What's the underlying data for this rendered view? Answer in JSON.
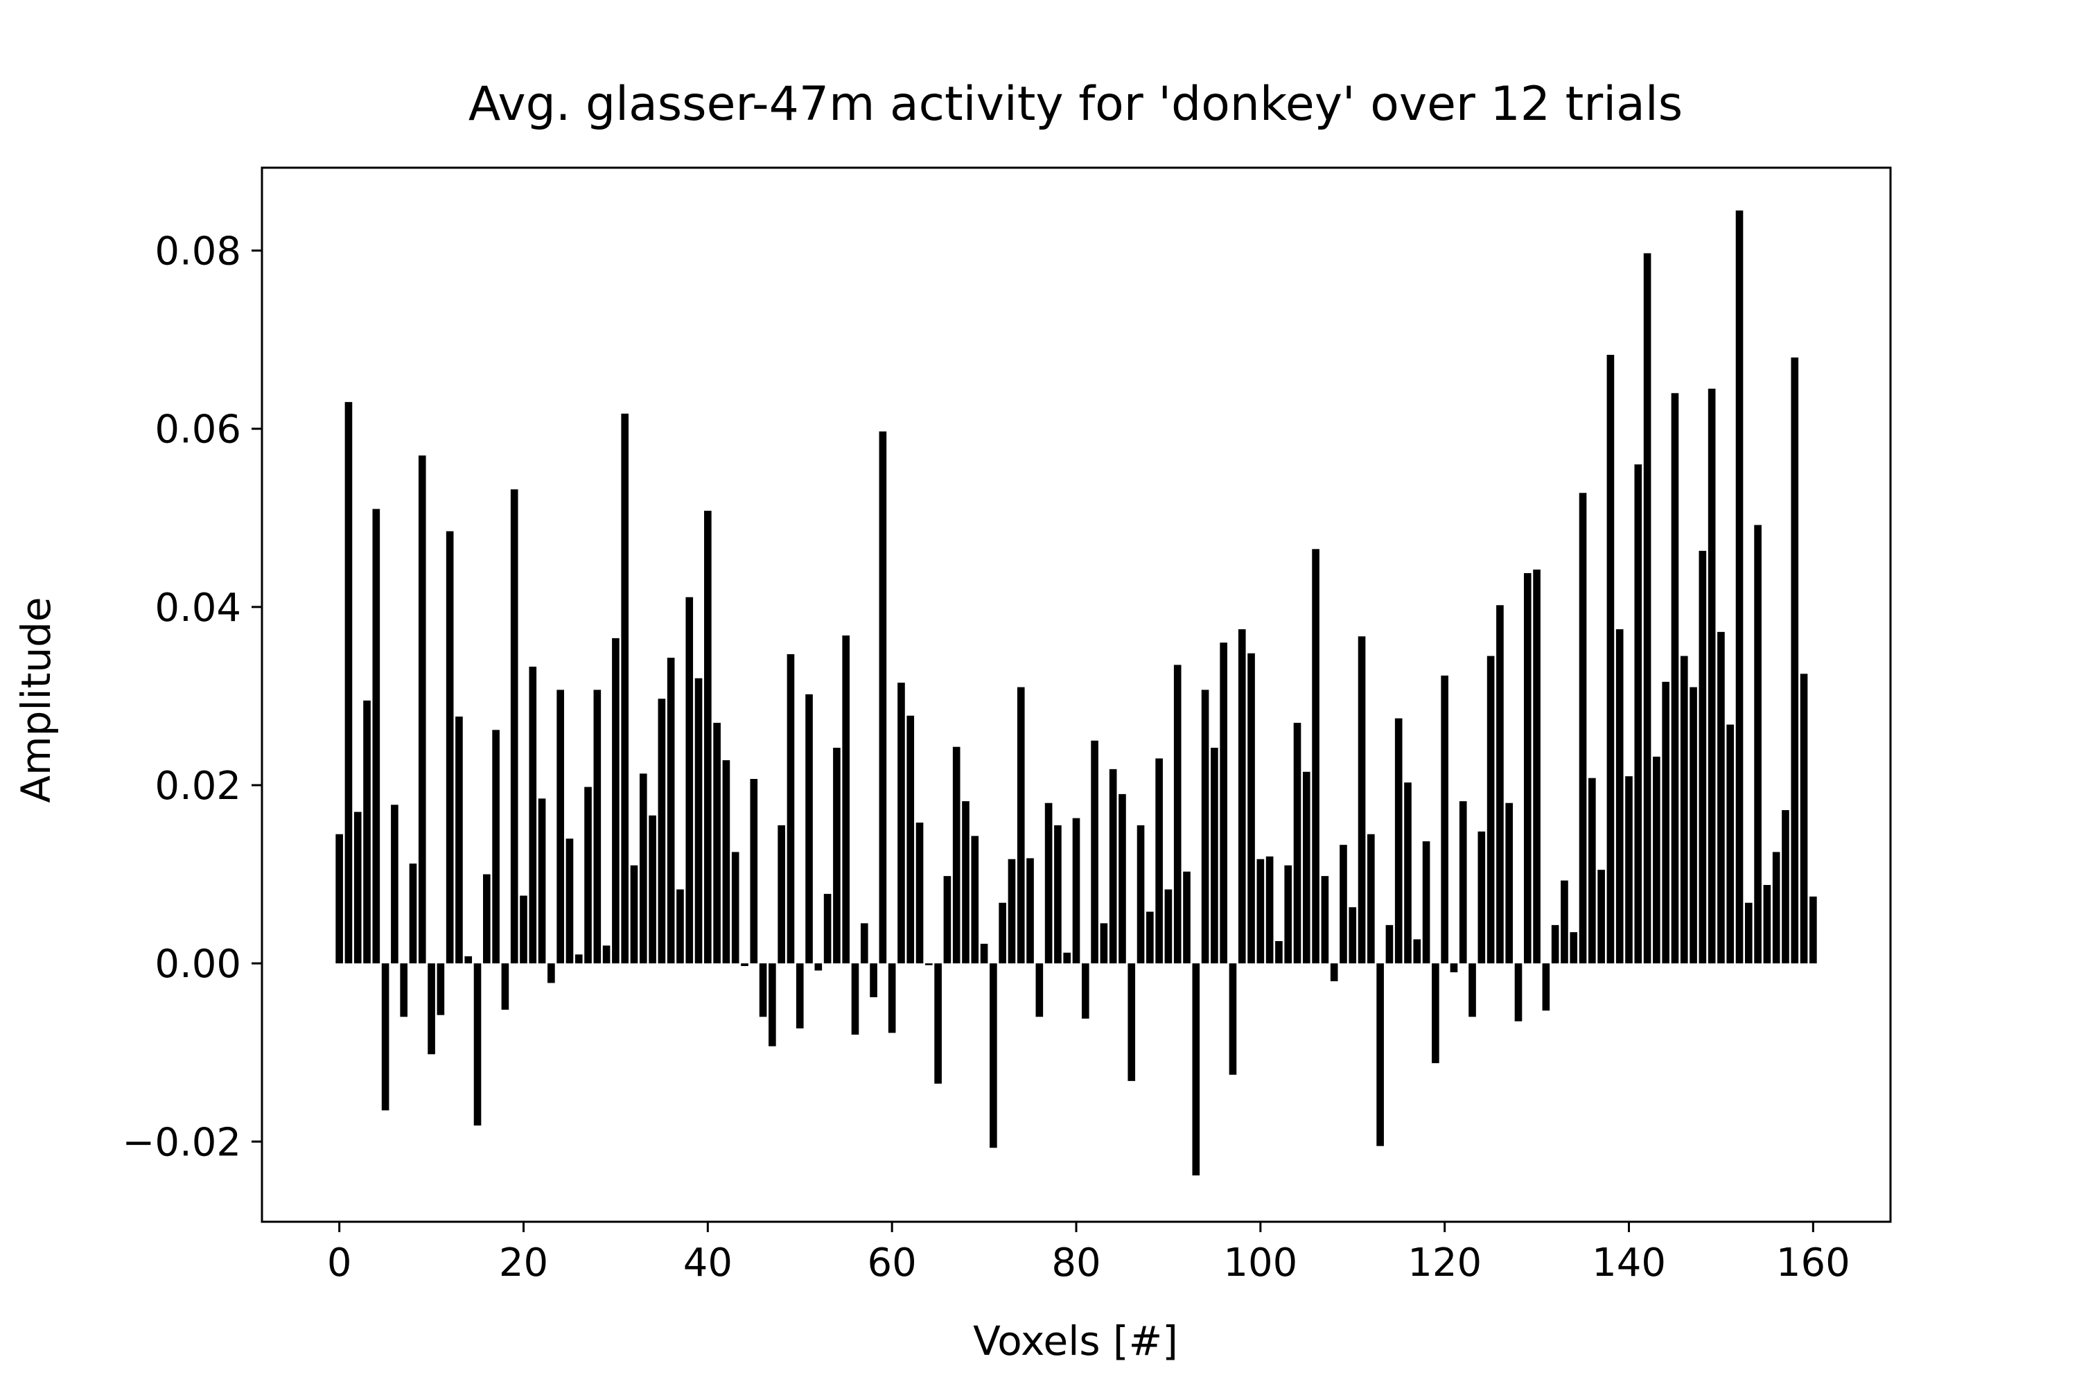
{
  "chart_data": {
    "type": "bar",
    "title": "Avg. glasser-47m activity for 'donkey' over 12 trials",
    "xlabel": "Voxels [#]",
    "ylabel": "Amplitude",
    "xlim": [
      -8.4,
      168.4
    ],
    "ylim": [
      -0.029,
      0.0893
    ],
    "xticks": [
      0,
      20,
      40,
      60,
      80,
      100,
      120,
      140,
      160
    ],
    "xtick_labels": [
      "0",
      "20",
      "40",
      "60",
      "80",
      "100",
      "120",
      "140",
      "160"
    ],
    "yticks": [
      -0.02,
      0.0,
      0.02,
      0.04,
      0.06,
      0.08
    ],
    "ytick_labels": [
      "−0.02",
      "0.00",
      "0.02",
      "0.04",
      "0.06",
      "0.08"
    ],
    "grid": false,
    "bar_color": "#000000",
    "x": [
      0,
      1,
      2,
      3,
      4,
      5,
      6,
      7,
      8,
      9,
      10,
      11,
      12,
      13,
      14,
      15,
      16,
      17,
      18,
      19,
      20,
      21,
      22,
      23,
      24,
      25,
      26,
      27,
      28,
      29,
      30,
      31,
      32,
      33,
      34,
      35,
      36,
      37,
      38,
      39,
      40,
      41,
      42,
      43,
      44,
      45,
      46,
      47,
      48,
      49,
      50,
      51,
      52,
      53,
      54,
      55,
      56,
      57,
      58,
      59,
      60,
      61,
      62,
      63,
      64,
      65,
      66,
      67,
      68,
      69,
      70,
      71,
      72,
      73,
      74,
      75,
      76,
      77,
      78,
      79,
      80,
      81,
      82,
      83,
      84,
      85,
      86,
      87,
      88,
      89,
      90,
      91,
      92,
      93,
      94,
      95,
      96,
      97,
      98,
      99,
      100,
      101,
      102,
      103,
      104,
      105,
      106,
      107,
      108,
      109,
      110,
      111,
      112,
      113,
      114,
      115,
      116,
      117,
      118,
      119,
      120,
      121,
      122,
      123,
      124,
      125,
      126,
      127,
      128,
      129,
      130,
      131,
      132,
      133,
      134,
      135,
      136,
      137,
      138,
      139,
      140,
      141,
      142,
      143,
      144,
      145,
      146,
      147,
      148,
      149,
      150,
      151,
      152,
      153,
      154,
      155,
      156,
      157,
      158,
      159,
      160
    ],
    "values": [
      0.0145,
      0.063,
      0.017,
      0.0295,
      0.051,
      -0.0165,
      0.0178,
      -0.006,
      0.0112,
      0.057,
      -0.0102,
      -0.0058,
      0.0485,
      0.0277,
      0.0008,
      -0.0182,
      0.01,
      0.0262,
      -0.0052,
      0.0532,
      0.0076,
      0.0333,
      0.0185,
      -0.0022,
      0.0307,
      0.014,
      0.001,
      0.0198,
      0.0307,
      0.002,
      0.0365,
      0.0617,
      0.011,
      0.0213,
      0.0166,
      0.0297,
      0.0343,
      0.0083,
      0.0411,
      0.032,
      0.0508,
      0.027,
      0.0228,
      0.0125,
      -0.0003,
      0.0207,
      -0.006,
      -0.0093,
      0.0155,
      0.0347,
      -0.0073,
      0.0302,
      -0.0008,
      0.0078,
      0.0242,
      0.0368,
      -0.008,
      0.0045,
      -0.0038,
      0.0597,
      -0.0078,
      0.0315,
      0.0278,
      0.0158,
      -0.0002,
      -0.0135,
      0.0098,
      0.0243,
      0.0182,
      0.0143,
      0.0022,
      -0.0207,
      0.0068,
      0.0117,
      0.031,
      0.0118,
      -0.006,
      0.018,
      0.0155,
      0.0012,
      0.0163,
      -0.0062,
      0.025,
      0.0045,
      0.0218,
      0.019,
      -0.0132,
      0.0155,
      0.0058,
      0.023,
      0.0083,
      0.0335,
      0.0103,
      -0.0238,
      0.0307,
      0.0242,
      0.036,
      -0.0125,
      0.0375,
      0.0348,
      0.0117,
      0.012,
      0.0025,
      0.011,
      0.027,
      0.0215,
      0.0465,
      0.0098,
      -0.002,
      0.0133,
      0.0063,
      0.0367,
      0.0145,
      -0.0205,
      0.0043,
      0.0275,
      0.0203,
      0.0027,
      0.0137,
      -0.0112,
      0.0323,
      -0.001,
      0.0182,
      -0.006,
      0.0148,
      0.0345,
      0.0402,
      0.018,
      -0.0065,
      0.0438,
      0.0442,
      -0.0053,
      0.0043,
      0.0093,
      0.0035,
      0.0528,
      0.0208,
      0.0105,
      0.0683,
      0.0375,
      0.021,
      0.056,
      0.0797,
      0.0232,
      0.0316,
      0.064,
      0.0345,
      0.031,
      0.0463,
      0.0645,
      0.0372,
      0.0268,
      0.0845,
      0.0068,
      0.0492,
      0.0088,
      0.0125,
      0.0172,
      0.068,
      0.0325,
      0.0075
    ]
  }
}
